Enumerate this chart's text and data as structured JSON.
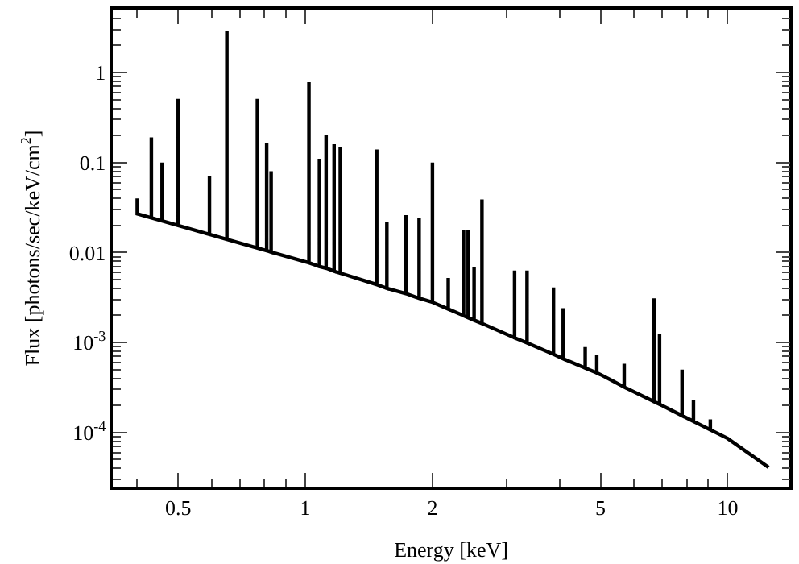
{
  "chart_data": {
    "type": "line",
    "xlabel": "Energy [keV]",
    "ylabel": "Flux [photons/sec/keV/cm$^{2}$]",
    "log": "xy",
    "marker": "none",
    "line_style": "solid",
    "xlim": [
      0.35,
      14
    ],
    "ylim": [
      2.5e-05,
      5
    ],
    "xticks": [
      {
        "value": 0.4,
        "label": null
      },
      0.5,
      {
        "value": 0.6,
        "label": null
      },
      {
        "value": 0.7,
        "label": null
      },
      {
        "value": 0.8,
        "label": null
      },
      {
        "value": 0.9,
        "label": null
      },
      1,
      2,
      {
        "value": 3,
        "label": null
      },
      {
        "value": 4,
        "label": null
      },
      5,
      {
        "value": 6,
        "label": null
      },
      {
        "value": 7,
        "label": null
      },
      {
        "value": 8,
        "label": null
      },
      {
        "value": 9,
        "label": null
      },
      10
    ],
    "yticks": [
      {
        "value": 3e-05,
        "label": null
      },
      {
        "value": 4e-05,
        "label": null
      },
      {
        "value": 5e-05,
        "label": null
      },
      {
        "value": 6e-05,
        "label": null
      },
      {
        "value": 7e-05,
        "label": null
      },
      {
        "value": 8e-05,
        "label": null
      },
      {
        "value": 9e-05,
        "label": null
      },
      {
        "value": 0.0001,
        "label": "10$^{-4}$"
      },
      {
        "value": 0.0002,
        "label": null
      },
      {
        "value": 0.0003,
        "label": null
      },
      {
        "value": 0.0004,
        "label": null
      },
      {
        "value": 0.0005,
        "label": null
      },
      {
        "value": 0.0006,
        "label": null
      },
      {
        "value": 0.0007,
        "label": null
      },
      {
        "value": 0.0008,
        "label": null
      },
      {
        "value": 0.0009,
        "label": null
      },
      {
        "value": 0.001,
        "label": "10$^{-3}$"
      },
      {
        "value": 0.002,
        "label": null
      },
      {
        "value": 0.003,
        "label": null
      },
      {
        "value": 0.004,
        "label": null
      },
      {
        "value": 0.005,
        "label": null
      },
      {
        "value": 0.006,
        "label": null
      },
      {
        "value": 0.007,
        "label": null
      },
      {
        "value": 0.008,
        "label": null
      },
      {
        "value": 0.009,
        "label": null
      },
      0.01,
      {
        "value": 0.02,
        "label": null
      },
      {
        "value": 0.03,
        "label": null
      },
      {
        "value": 0.04,
        "label": null
      },
      {
        "value": 0.05,
        "label": null
      },
      {
        "value": 0.06,
        "label": null
      },
      {
        "value": 0.07,
        "label": null
      },
      {
        "value": 0.08,
        "label": null
      },
      {
        "value": 0.09,
        "label": null
      },
      0.1,
      {
        "value": 0.2,
        "label": null
      },
      {
        "value": 0.3,
        "label": null
      },
      {
        "value": 0.4,
        "label": null
      },
      {
        "value": 0.5,
        "label": null
      },
      {
        "value": 0.6,
        "label": null
      },
      {
        "value": 0.7,
        "label": null
      },
      {
        "value": 0.8,
        "label": null
      },
      {
        "value": 0.9,
        "label": null
      },
      1,
      {
        "value": 2,
        "label": null
      },
      {
        "value": 3,
        "label": null
      },
      {
        "value": 4,
        "label": null
      },
      {
        "value": 5,
        "label": null
      }
    ],
    "x": [
      0.4,
      0.4,
      0.4,
      0.432,
      0.432,
      0.432,
      0.458,
      0.458,
      0.458,
      0.5,
      0.5,
      0.5,
      0.593,
      0.593,
      0.593,
      0.652,
      0.652,
      0.652,
      0.77,
      0.77,
      0.77,
      0.81,
      0.81,
      0.81,
      0.83,
      0.83,
      0.83,
      1.0,
      1.02,
      1.02,
      1.02,
      1.08,
      1.08,
      1.08,
      1.12,
      1.12,
      1.12,
      1.17,
      1.17,
      1.17,
      1.21,
      1.21,
      1.21,
      1.476,
      1.476,
      1.476,
      1.56,
      1.56,
      1.56,
      1.73,
      1.73,
      1.73,
      1.86,
      1.86,
      1.86,
      2.0,
      2.0,
      2.0,
      2.18,
      2.18,
      2.18,
      2.37,
      2.37,
      2.37,
      2.43,
      2.43,
      2.43,
      2.51,
      2.51,
      2.51,
      2.62,
      2.62,
      2.62,
      3.13,
      3.13,
      3.13,
      3.35,
      3.35,
      3.35,
      3.87,
      3.87,
      3.87,
      4.08,
      4.08,
      4.08,
      4.6,
      4.6,
      4.6,
      4.9,
      4.9,
      4.9,
      5.0,
      5.69,
      5.69,
      5.69,
      6.7,
      6.7,
      6.7,
      6.9,
      6.9,
      6.9,
      7.8,
      7.8,
      7.8,
      8.3,
      8.3,
      8.3,
      9.1,
      9.1,
      9.1,
      10,
      12.5
    ],
    "series": [
      {
        "color": "#000000",
        "values": [
          0.027,
          0.04,
          0.027,
          0.0243,
          0.19,
          0.0243,
          0.0225,
          0.1,
          0.0225,
          0.02,
          0.51,
          0.02,
          0.0159,
          0.07,
          0.0159,
          0.014,
          2.9,
          0.014,
          0.0112,
          0.51,
          0.0112,
          0.0105,
          0.165,
          0.0105,
          0.0101,
          0.08,
          0.0101,
          0.0079,
          0.0077,
          0.78,
          0.0077,
          0.007,
          0.11,
          0.007,
          0.0067,
          0.2,
          0.0067,
          0.0062,
          0.16,
          0.0062,
          0.0059,
          0.15,
          0.0059,
          0.0044,
          0.14,
          0.0044,
          0.004,
          0.022,
          0.004,
          0.0035,
          0.026,
          0.0035,
          0.0031,
          0.024,
          0.0031,
          0.0028,
          0.1,
          0.0028,
          0.00235,
          0.0052,
          0.00235,
          0.00199,
          0.018,
          0.00199,
          0.00189,
          0.018,
          0.00189,
          0.00177,
          0.0068,
          0.00177,
          0.00163,
          0.039,
          0.00163,
          0.00113,
          0.0063,
          0.00113,
          0.00099,
          0.0063,
          0.00099,
          0.00074,
          0.0041,
          0.00074,
          0.00066,
          0.0024,
          0.00066,
          0.00052,
          0.00089,
          0.00052,
          0.00046,
          0.00073,
          0.00046,
          0.00044,
          0.00032,
          0.00058,
          0.00032,
          0.00022,
          0.0031,
          0.00022,
          0.000206,
          0.00126,
          0.000206,
          0.000154,
          0.0005,
          0.000154,
          0.000133,
          0.00023,
          0.000133,
          0.000107,
          0.00014,
          0.000107,
          8.6e-05,
          4.1e-05
        ]
      }
    ]
  }
}
